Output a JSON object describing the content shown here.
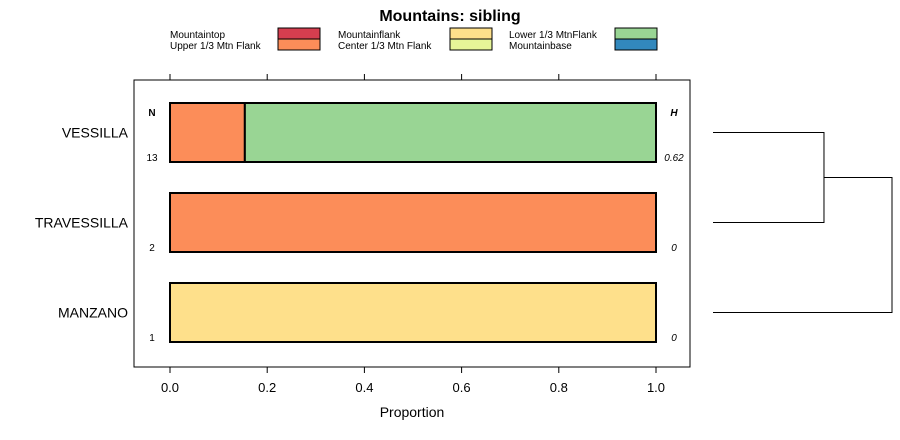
{
  "chart_data": {
    "type": "bar",
    "orientation": "horizontal",
    "stacked": true,
    "title": "Mountains: sibling",
    "xlabel": "Proportion",
    "ylabel": "",
    "xlim": [
      0,
      1
    ],
    "x_ticks": [
      "0.0",
      "0.2",
      "0.4",
      "0.6",
      "0.8",
      "1.0"
    ],
    "legend_position": "top",
    "legend": [
      {
        "name": "Mountaintop",
        "color": "#d53e4f"
      },
      {
        "name": "Upper 1/3 Mtn Flank",
        "color": "#fc8d59"
      },
      {
        "name": "Mountainflank",
        "color": "#fee08b"
      },
      {
        "name": "Center 1/3 Mtn Flank",
        "color": "#e6f598"
      },
      {
        "name": "Lower 1/3 MtnFlank",
        "color": "#99d594"
      },
      {
        "name": "Mountainbase",
        "color": "#3288bd"
      }
    ],
    "n_header": "N",
    "h_header": "H",
    "categories": [
      "VESSILLA",
      "TRAVESSILLA",
      "MANZANO"
    ],
    "n_values": [
      "13",
      "2",
      "1"
    ],
    "h_values": [
      "0.62",
      "0",
      "0"
    ],
    "series": [
      {
        "name": "Mountaintop",
        "values": [
          0,
          0,
          0
        ]
      },
      {
        "name": "Upper 1/3 Mtn Flank",
        "values": [
          0.154,
          1,
          0
        ]
      },
      {
        "name": "Mountainflank",
        "values": [
          0,
          0,
          1
        ]
      },
      {
        "name": "Center 1/3 Mtn Flank",
        "values": [
          0,
          0,
          0
        ]
      },
      {
        "name": "Lower 1/3 MtnFlank",
        "values": [
          0.846,
          0,
          0
        ]
      },
      {
        "name": "Mountainbase",
        "values": [
          0,
          0,
          0
        ]
      }
    ],
    "dendrogram": {
      "merges": [
        {
          "left": "VESSILLA",
          "right": "TRAVESSILLA",
          "height": 0.62
        },
        {
          "left": "cluster1",
          "right": "MANZANO",
          "height": 1.0
        }
      ]
    }
  }
}
